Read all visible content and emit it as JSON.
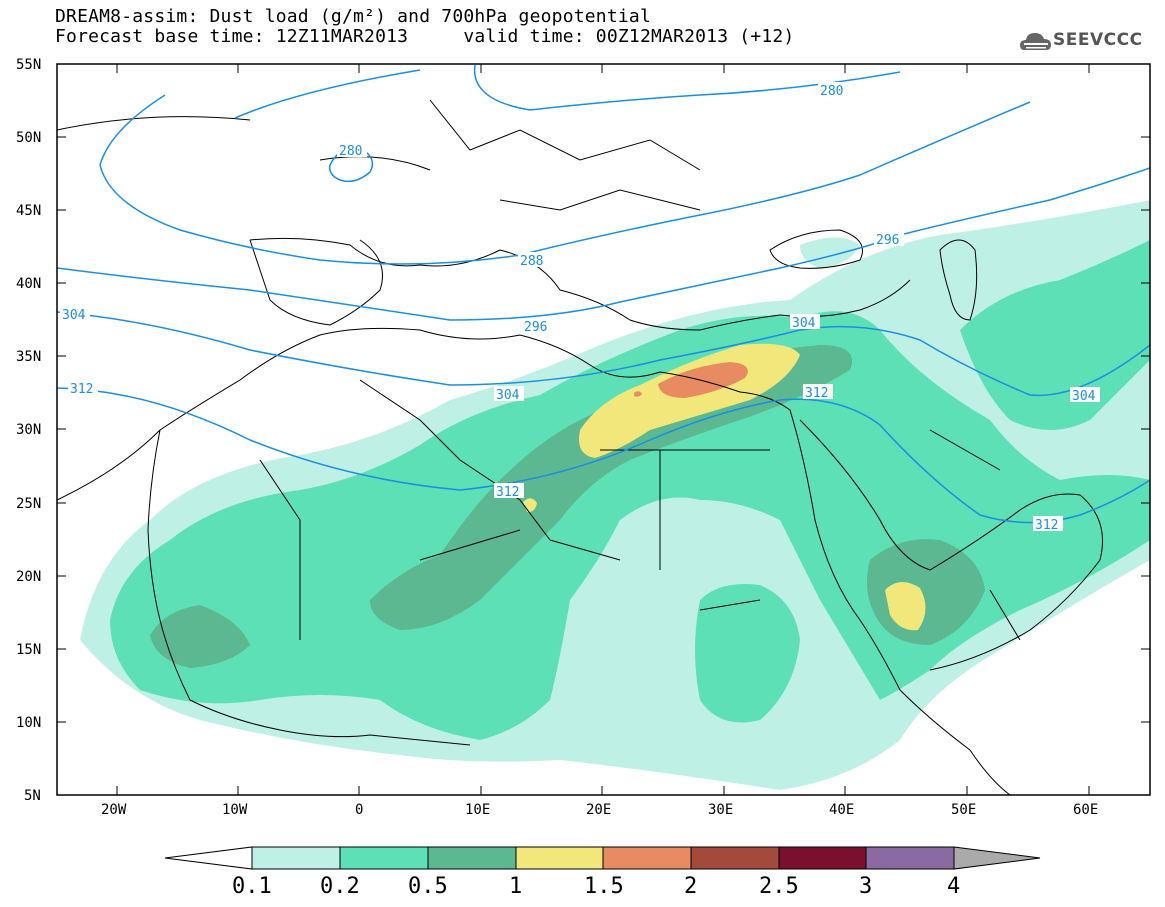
{
  "title": {
    "line1": "DREAM8-assim: Dust load (g/m²) and 700hPa geopotential",
    "line2": "Forecast base time: 12Z11MAR2013     valid time: 00Z12MAR2013 (+12)"
  },
  "logo": {
    "icon": "cloud-logo-icon",
    "text": "SEEVCCC"
  },
  "colors": {
    "contour": "#1a8fe0",
    "coast": "#000000",
    "bins": [
      "#bff0e6",
      "#5ee0b6",
      "#5cb890",
      "#f2e77a",
      "#e88a62",
      "#a34a3c",
      "#7a0f2e",
      "#8a6aa0",
      "#aaaaaa"
    ]
  },
  "axes": {
    "lat_labels": [
      "55N",
      "50N",
      "45N",
      "40N",
      "35N",
      "30N",
      "25N",
      "20N",
      "15N",
      "10N",
      "5N"
    ],
    "lon_labels": [
      "20W",
      "10W",
      "0",
      "10E",
      "20E",
      "30E",
      "40E",
      "50E",
      "60E"
    ]
  },
  "contour_labels": [
    "280",
    "280",
    "288",
    "296",
    "296",
    "304",
    "304",
    "304",
    "312",
    "312",
    "312",
    "312"
  ],
  "colorbar": {
    "labels": [
      "0.1",
      "0.2",
      "0.5",
      "1",
      "1.5",
      "2",
      "2.5",
      "3",
      "4"
    ]
  }
}
